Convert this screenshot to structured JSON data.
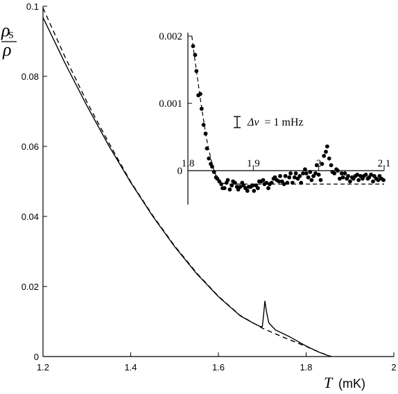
{
  "chart_data": [
    {
      "type": "line",
      "title": "",
      "xlabel": {
        "symbol": "T",
        "unit": "(mK)"
      },
      "ylabel": {
        "numerator": "ρ",
        "subscript": "S",
        "denominator": "ρ"
      },
      "xlim": [
        1.2,
        2.0
      ],
      "ylim": [
        0,
        0.1
      ],
      "x_ticks": [
        1.2,
        1.4,
        1.6,
        1.8,
        2.0
      ],
      "x_tick_labels": [
        "1.2",
        "1.4",
        "1.6",
        "1.8",
        "2"
      ],
      "y_ticks": [
        0,
        0.02,
        0.04,
        0.06,
        0.08,
        0.1
      ],
      "y_tick_labels": [
        "0",
        "0.02",
        "0.04",
        "0.06",
        "0.08",
        "0.1"
      ],
      "grid": false,
      "series": [
        {
          "style": "solid",
          "x": [
            1.2,
            1.25,
            1.3,
            1.35,
            1.4,
            1.45,
            1.5,
            1.55,
            1.6,
            1.65,
            1.68,
            1.695,
            1.7,
            1.703,
            1.706,
            1.71,
            1.715,
            1.73,
            1.76,
            1.8,
            1.83,
            1.856
          ],
          "y": [
            0.0968,
            0.0838,
            0.0716,
            0.0602,
            0.0497,
            0.0401,
            0.0314,
            0.0237,
            0.0171,
            0.0116,
            0.0095,
            0.0086,
            0.0085,
            0.0118,
            0.0158,
            0.0125,
            0.0096,
            0.0076,
            0.0058,
            0.003,
            0.0012,
            0.0
          ]
        },
        {
          "style": "dashed",
          "x": [
            1.2,
            1.25,
            1.3,
            1.35,
            1.4,
            1.45,
            1.5,
            1.55,
            1.6,
            1.65,
            1.7,
            1.75,
            1.8,
            1.83,
            1.858
          ],
          "y": [
            0.0995,
            0.0856,
            0.0727,
            0.061,
            0.0499,
            0.0403,
            0.0316,
            0.0239,
            0.0172,
            0.0117,
            0.0081,
            0.0054,
            0.0029,
            0.0012,
            0.0
          ]
        }
      ]
    },
    {
      "type": "scatter",
      "title": "",
      "xlim": [
        1.8,
        2.1
      ],
      "ylim": [
        -0.001,
        0.002
      ],
      "x_ticks": [
        1.8,
        1.9,
        2.0,
        2.1
      ],
      "x_tick_labels": [
        "1.8",
        "1.9",
        "2",
        "2.1"
      ],
      "y_ticks": [
        0,
        0.001,
        0.002
      ],
      "y_tick_labels": [
        "0",
        "0.001",
        "0.002"
      ],
      "annotation": {
        "symbol": "Δν",
        "text": "= 1 mHz"
      },
      "points": {
        "x": [
          1.808,
          1.811,
          1.813,
          1.816,
          1.819,
          1.821,
          1.824,
          1.827,
          1.829,
          1.832,
          1.835,
          1.837,
          1.84,
          1.843,
          1.845,
          1.848,
          1.851,
          1.853,
          1.856,
          1.859,
          1.861,
          1.864,
          1.867,
          1.869,
          1.872,
          1.875,
          1.877,
          1.88,
          1.883,
          1.885,
          1.888,
          1.891,
          1.893,
          1.896,
          1.899,
          1.901,
          1.904,
          1.907,
          1.909,
          1.912,
          1.915,
          1.917,
          1.92,
          1.923,
          1.925,
          1.928,
          1.931,
          1.933,
          1.936,
          1.939,
          1.941,
          1.944,
          1.947,
          1.949,
          1.952,
          1.955,
          1.957,
          1.96,
          1.963,
          1.965,
          1.968,
          1.971,
          1.973,
          1.976,
          1.979,
          1.981,
          1.984,
          1.987,
          1.989,
          1.992,
          1.995,
          1.997,
          2.0,
          2.003,
          2.005,
          2.008,
          2.011,
          2.013,
          2.016,
          2.019,
          2.021,
          2.024,
          2.027,
          2.029,
          2.032,
          2.035,
          2.037,
          2.04,
          2.043,
          2.045,
          2.048,
          2.051,
          2.053,
          2.056,
          2.059,
          2.061,
          2.064,
          2.067,
          2.069,
          2.072,
          2.075,
          2.077,
          2.08,
          2.083,
          2.085,
          2.088,
          2.091,
          2.093,
          2.096,
          2.099
        ],
        "y": [
          0.00185,
          0.00172,
          0.00148,
          0.00112,
          0.00114,
          0.00092,
          0.00068,
          0.00055,
          0.00033,
          0.00018,
          0.0001,
          6e-05,
          -2e-05,
          -0.0001,
          -0.00012,
          -0.00016,
          -0.0002,
          -0.00026,
          -0.00026,
          -0.00018,
          -0.00014,
          -0.00028,
          -0.00022,
          -0.00016,
          -0.00018,
          -0.00024,
          -0.00028,
          -0.00024,
          -0.00018,
          -0.00022,
          -0.00026,
          -0.0003,
          -0.00024,
          -0.00024,
          -0.00022,
          -0.0003,
          -0.00022,
          -0.00026,
          -0.00016,
          -0.00016,
          -0.00014,
          -0.0002,
          -0.00018,
          -0.00026,
          -0.0002,
          -0.00018,
          -0.00012,
          -0.0001,
          -0.00014,
          -0.00016,
          -8e-05,
          -0.00016,
          -0.0002,
          -8e-05,
          -0.00018,
          -0.0001,
          -4e-05,
          -0.00018,
          -0.0001,
          -4e-05,
          -0.00012,
          -8e-05,
          -0.00018,
          -4e-05,
          2e-05,
          -4e-05,
          -0.0001,
          -2e-05,
          -0.00014,
          -8e-05,
          -4e-05,
          8e-05,
          -6e-05,
          -0.00014,
          0.0001,
          0.00022,
          0.00028,
          0.00036,
          0.00018,
          8e-05,
          -2e-05,
          -4e-05,
          2e-05,
          0.0,
          -0.00012,
          -4e-05,
          -0.0001,
          -4e-05,
          -0.00012,
          -8e-05,
          -0.00016,
          -0.0001,
          -0.00012,
          -8e-05,
          -6e-05,
          -0.00014,
          -8e-05,
          -0.00012,
          -8e-05,
          -6e-05,
          -0.00012,
          -0.0001,
          -6e-05,
          -0.00016,
          -8e-05,
          -0.00012,
          -0.00014,
          -8e-05,
          -0.00012,
          -0.00014
        ]
      },
      "fit": {
        "style": "dashed",
        "x": [
          1.806,
          1.81,
          1.815,
          1.82,
          1.825,
          1.83,
          1.835,
          1.84,
          1.845,
          1.85,
          1.86,
          1.9,
          2.0,
          2.1
        ],
        "y": [
          0.002,
          0.0017,
          0.00135,
          0.001,
          0.00068,
          0.0004,
          0.00018,
          0.0,
          -0.00012,
          -0.00018,
          -0.0002,
          -0.0002,
          -0.0002,
          -0.0002
        ]
      }
    }
  ]
}
